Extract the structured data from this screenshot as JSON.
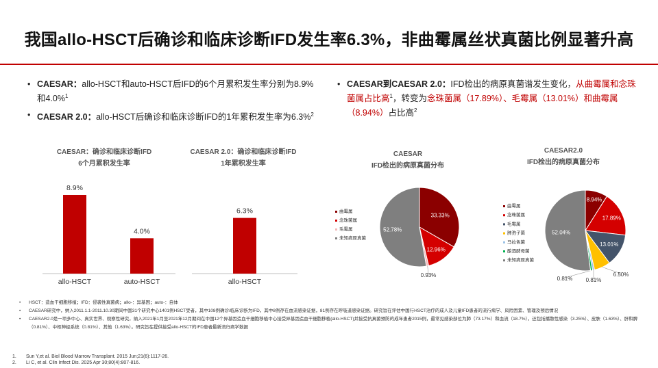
{
  "title": "我国allo-HSCT后确诊和临床诊断IFD发生率6.3%，非曲霉属丝状真菌比例显著升高",
  "left_bullets": [
    {
      "bold": "CAESAR：",
      "text": "allo-HSCT和auto-HSCT后IFD的6个月累积发生率分别为8.9%和4.0%",
      "sup": "1"
    },
    {
      "bold": "CAESAR 2.0：",
      "text": "allo-HSCT后确诊和临床诊断IFD的1年累积发生率为6.3%",
      "sup": "2"
    }
  ],
  "right_bullet": {
    "bold": "CAESAR到CAESAR 2.0：",
    "text1": "IFD检出的病原真菌谱发生变化，",
    "red1": "从曲霉属和念珠菌属占比高",
    "sup1": "1",
    "text2": "，转变为",
    "red2": "念珠菌属（17.89%）、毛霉属（13.01%）和曲霉属（8.94%）",
    "text3": "占比高",
    "sup2": "2"
  },
  "chart_data": [
    {
      "type": "bar",
      "title_line1": "CAESAR：确诊和临床诊断IFD",
      "title_line2": "6个月累积发生率",
      "categories": [
        "allo-HSCT",
        "auto-HSCT"
      ],
      "values": [
        8.9,
        4.0
      ],
      "labels": [
        "8.9%",
        "4.0%"
      ],
      "color": "#c00000"
    },
    {
      "type": "bar",
      "title_line1": "CAESAR 2.0：确诊和临床诊断IFD",
      "title_line2": "1年累积发生率",
      "categories": [
        "allo-HSCT"
      ],
      "values": [
        6.3
      ],
      "labels": [
        "6.3%"
      ],
      "color": "#c00000"
    },
    {
      "type": "pie",
      "title_line1": "CAESAR",
      "title_line2": "IFD检出的病原真菌分布",
      "slices": [
        {
          "name": "曲霉属",
          "value": 33.33,
          "label": "33.33%",
          "color": "#8b0000"
        },
        {
          "name": "念珠菌属",
          "value": 12.96,
          "label": "12.96%",
          "color": "#d40000"
        },
        {
          "name": "毛霉属",
          "value": 0.93,
          "label": "0.93%",
          "color": "#f2b8b8"
        },
        {
          "name": "未知病原真菌",
          "value": 52.78,
          "label": "52.78%",
          "color": "#7f7f7f"
        }
      ]
    },
    {
      "type": "pie",
      "title_line1": "CAESAR2.0",
      "title_line2": "IFD检出的病原真菌分布",
      "slices": [
        {
          "name": "曲霉属",
          "value": 8.94,
          "label": "8.94%",
          "color": "#8b0000"
        },
        {
          "name": "念珠菌属",
          "value": 17.89,
          "label": "17.89%",
          "color": "#d40000"
        },
        {
          "name": "毛霉属",
          "value": 13.01,
          "label": "13.01%",
          "color": "#44546a"
        },
        {
          "name": "肺孢子菌",
          "value": 6.5,
          "label": "6.50%",
          "color": "#ffc000"
        },
        {
          "name": "马拉色菌",
          "value": 0.81,
          "label": "0.81%",
          "color": "#9dc3e6"
        },
        {
          "name": "酿酒酵母菌",
          "value": 0.81,
          "label": "0.81%",
          "color": "#00b050"
        },
        {
          "name": "未知病原真菌",
          "value": 52.04,
          "label": "52.04%",
          "color": "#7f7f7f"
        }
      ]
    }
  ],
  "footnotes": [
    "HSCT：造血干细胞移植；IFD：侵袭性真菌病；allo-：异基因；auto-：自体",
    "CAESAR研究中，纳入2011.1.1-2011.10.30期间中国31个研究中心1401例HSCT受者，其中108例确诊/临床诊断为IFD，其中8例存在血流感染证据，81例存在呼吸道感染证据。研究旨在评估中国行HSCT治疗的成人及儿童IFD患者的流行病学、风险因素、管理及预后情况",
    "CAESAR2.0是一项多中心、真实世界、观察性研究，纳入2021年1月至2021年12月期间在中国12个异基因造血干细胞移植中心接受异基因造血干细胞移植(allo-HSCT)并接受抗真菌预防的成年患者2015例，最常见感染部位为肺（73.17%）和血流（18.7%），还包括播散性感染（3.25%）、皮肤（1.63%）、肝和脾（0.81%）、中枢神经系统（0.81%）、其他（1.63%）。研究旨在提供接受allo-HSCT的IFD患者最新流行病学数据"
  ],
  "references": [
    {
      "n": "1.",
      "text": "Sun Y,et al. Biol Blood Marrow Transplant. 2015 Jun;21(6):1117-26."
    },
    {
      "n": "2.",
      "text": "Li C, et al.  Clin Infect Dis. 2025 Apr 30;80(4):807-816."
    }
  ]
}
